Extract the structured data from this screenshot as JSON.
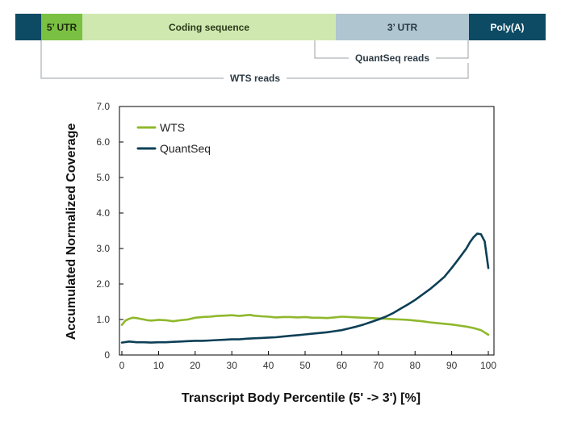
{
  "diagram": {
    "segments": [
      {
        "label": "",
        "color": "#0d4a63",
        "text_color": "#ffffff"
      },
      {
        "label": "5’ UTR",
        "color": "#7ac043",
        "text_color": "#1e2a10"
      },
      {
        "label": "Coding sequence",
        "color": "#cfe8b0",
        "text_color": "#2a3a1a"
      },
      {
        "label": "3’ UTR",
        "color": "#afc5cf",
        "text_color": "#2a3a44"
      },
      {
        "label": "Poly(A)",
        "color": "#0d4a63",
        "text_color": "#ffffff"
      }
    ],
    "quantseq_reads_label": "QuantSeq reads",
    "wts_reads_label": "WTS reads"
  },
  "chart_data": {
    "type": "line",
    "title": "",
    "xlabel": "Transcript Body Percentile (5' -> 3') [%]",
    "ylabel": "Accumulated Normalized Coverage",
    "xlim": [
      0,
      100
    ],
    "ylim": [
      0,
      7
    ],
    "xticks": [
      0,
      10,
      20,
      30,
      40,
      50,
      60,
      70,
      80,
      90,
      100
    ],
    "yticks": [
      "0",
      "1.0",
      "2.0",
      "3.0",
      "4.0",
      "5.0",
      "6.0",
      "7.0"
    ],
    "grid": false,
    "legend_position": "top-left",
    "series": [
      {
        "name": "WTS",
        "color": "#8fb82c",
        "x": [
          0,
          1,
          2,
          3,
          4,
          5,
          6,
          7,
          8,
          9,
          10,
          12,
          14,
          16,
          18,
          20,
          22,
          24,
          26,
          28,
          30,
          32,
          34,
          35,
          36,
          38,
          40,
          42,
          44,
          46,
          48,
          50,
          52,
          54,
          56,
          58,
          60,
          62,
          64,
          66,
          68,
          70,
          72,
          74,
          76,
          78,
          80,
          82,
          84,
          86,
          88,
          90,
          92,
          94,
          96,
          98,
          100
        ],
        "y": [
          0.85,
          0.97,
          1.02,
          1.05,
          1.04,
          1.02,
          1.0,
          0.98,
          0.97,
          0.98,
          0.99,
          0.98,
          0.95,
          0.98,
          1.0,
          1.05,
          1.07,
          1.08,
          1.1,
          1.11,
          1.12,
          1.1,
          1.12,
          1.13,
          1.11,
          1.09,
          1.08,
          1.06,
          1.07,
          1.07,
          1.06,
          1.07,
          1.05,
          1.05,
          1.04,
          1.06,
          1.08,
          1.07,
          1.06,
          1.05,
          1.04,
          1.03,
          1.02,
          1.01,
          1.0,
          0.99,
          0.97,
          0.95,
          0.92,
          0.9,
          0.88,
          0.86,
          0.83,
          0.8,
          0.76,
          0.7,
          0.57
        ]
      },
      {
        "name": "QuantSeq",
        "color": "#0d3f56",
        "x": [
          0,
          2,
          4,
          6,
          8,
          10,
          12,
          14,
          16,
          18,
          20,
          22,
          24,
          26,
          28,
          30,
          32,
          34,
          36,
          38,
          40,
          42,
          44,
          46,
          48,
          50,
          52,
          54,
          56,
          58,
          60,
          62,
          64,
          66,
          68,
          70,
          72,
          74,
          76,
          78,
          80,
          82,
          84,
          86,
          88,
          90,
          92,
          94,
          95,
          96,
          97,
          98,
          99,
          100
        ],
        "y": [
          0.35,
          0.38,
          0.36,
          0.36,
          0.35,
          0.36,
          0.36,
          0.37,
          0.38,
          0.39,
          0.4,
          0.4,
          0.41,
          0.42,
          0.43,
          0.44,
          0.44,
          0.46,
          0.47,
          0.48,
          0.49,
          0.5,
          0.52,
          0.54,
          0.56,
          0.58,
          0.6,
          0.62,
          0.64,
          0.67,
          0.7,
          0.75,
          0.8,
          0.86,
          0.93,
          1.0,
          1.08,
          1.18,
          1.3,
          1.42,
          1.55,
          1.7,
          1.85,
          2.02,
          2.2,
          2.45,
          2.72,
          3.0,
          3.18,
          3.32,
          3.42,
          3.4,
          3.2,
          2.45
        ]
      }
    ]
  }
}
